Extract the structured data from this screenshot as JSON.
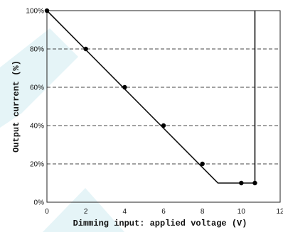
{
  "chart_data": {
    "type": "line",
    "xlabel": "Dimming input: applied voltage (V)",
    "ylabel": "Output current (%)",
    "xlim": [
      0,
      12
    ],
    "ylim": [
      0,
      100
    ],
    "x_ticks": [
      "0",
      "2",
      "4",
      "6",
      "8",
      "10",
      "12"
    ],
    "y_ticks": [
      "0%",
      "20%",
      "40%",
      "60%",
      "80%",
      "100%"
    ],
    "grid": "horizontal-dashed",
    "series": [
      {
        "line": [
          [
            0,
            100
          ],
          [
            8.8,
            10
          ],
          [
            10.7,
            10
          ],
          [
            10.7,
            100
          ]
        ],
        "points": [
          [
            0,
            100
          ],
          [
            2,
            80
          ],
          [
            4,
            60
          ],
          [
            6,
            40
          ],
          [
            8,
            20
          ],
          [
            10,
            10
          ],
          [
            10.7,
            10
          ]
        ]
      }
    ]
  }
}
